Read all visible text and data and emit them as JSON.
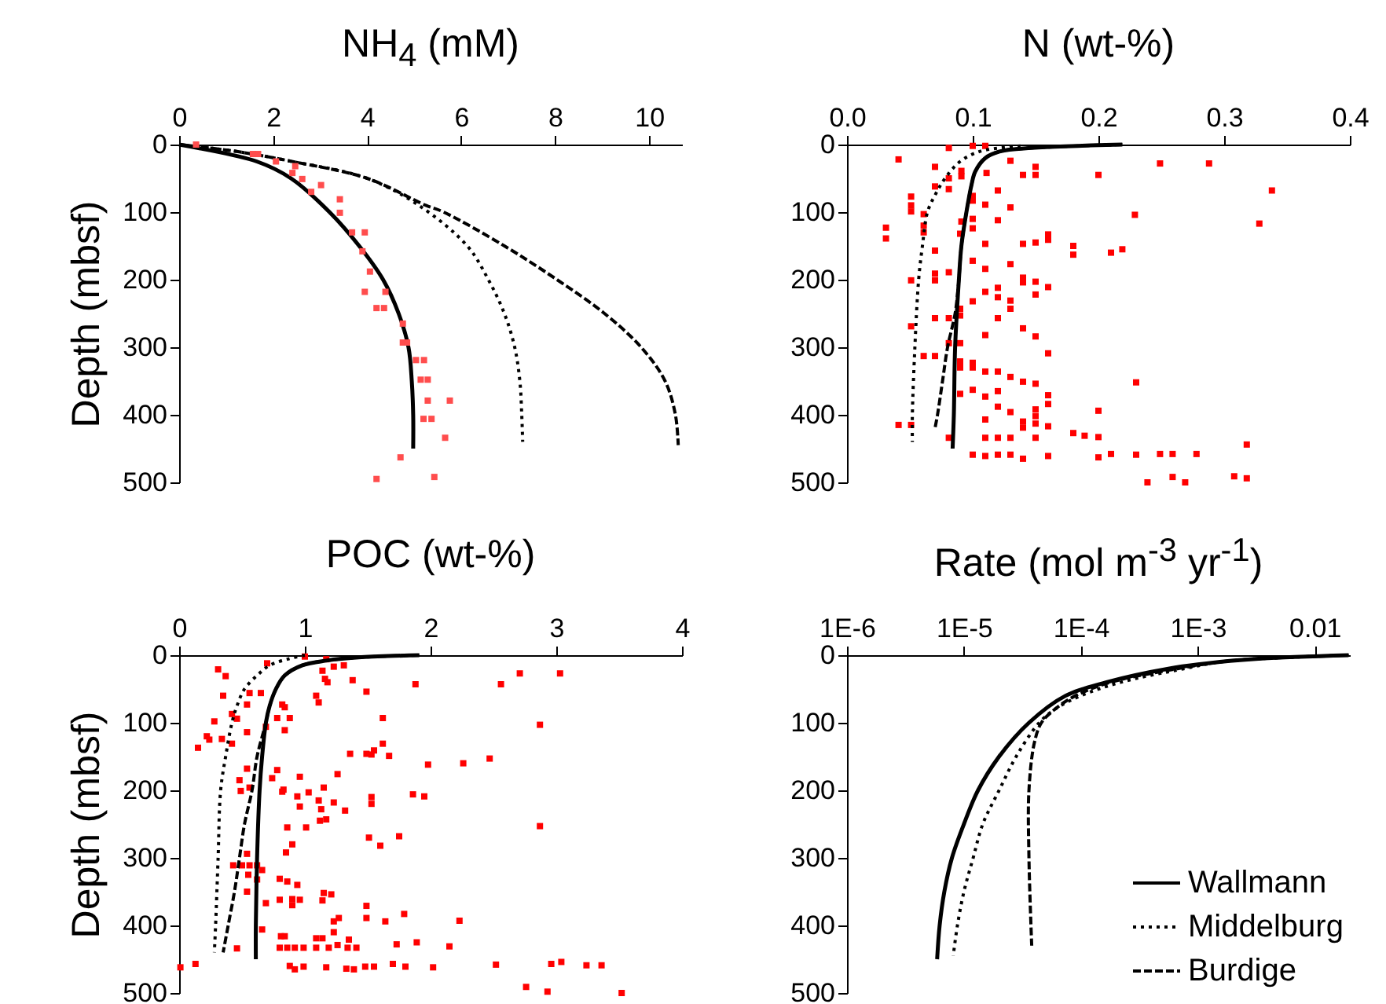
{
  "chart_data": [
    {
      "type": "line",
      "title": "NH$_{4}$ (mM)",
      "ylabel": "Depth (mbsf)",
      "xlim": [
        0,
        10.7
      ],
      "xticks": [
        0,
        2,
        4,
        6,
        8,
        10
      ],
      "ylim": [
        500,
        0
      ],
      "yticks": [
        0,
        100,
        200,
        300,
        400,
        500
      ],
      "grid": false,
      "legend": false,
      "series": [
        {
          "line_style": "solid",
          "color": "#000000",
          "x": [
            0,
            1.65,
            2.38,
            3.2,
            3.83,
            4.34,
            4.67,
            4.88,
            4.95,
            4.98,
            4.98
          ],
          "values": [
            0,
            25,
            50,
            100,
            150,
            200,
            250,
            300,
            350,
            400,
            450
          ]
        },
        {
          "line_style": "dotted",
          "color": "#000000",
          "x": [
            0,
            1.2,
            2.4,
            4.0,
            5.1,
            6.13,
            6.58,
            6.92,
            7.14,
            7.25,
            7.29,
            7.31
          ],
          "values": [
            0,
            10,
            25,
            50,
            90,
            150,
            200,
            250,
            300,
            350,
            400,
            440
          ]
        },
        {
          "line_style": "dashed",
          "color": "#000000",
          "x": [
            0,
            1.2,
            2.4,
            4.0,
            5.25,
            5.63,
            6.92,
            8.04,
            9.05,
            9.83,
            10.34,
            10.56,
            10.62
          ],
          "values": [
            0,
            10,
            25,
            50,
            90,
            100,
            150,
            200,
            250,
            300,
            350,
            400,
            445
          ]
        },
        {
          "type": "scatter",
          "marker": "square",
          "color": "#ff4d4d",
          "x": [
            0.36,
            1.57,
            1.68,
            2.06,
            2.47,
            2.41,
            2.62,
            3.02,
            2.81,
            3.42,
            3.42,
            3.68,
            3.95,
            3.9,
            4.06,
            3.95,
            4.39,
            4.2,
            4.36,
            4.76,
            4.76,
            4.85,
            5.04,
            5.21,
            5.14,
            5.29,
            5.29,
            5.76,
            5.2,
            5.37,
            5.66,
            4.71,
            4.2,
            5.43
          ],
          "values": [
            0,
            14,
            14,
            25,
            32,
            42,
            51,
            60,
            70,
            81,
            101,
            130,
            130,
            158,
            188,
            218,
            218,
            242,
            242,
            265,
            293,
            293,
            319,
            319,
            348,
            348,
            379,
            379,
            406,
            406,
            434,
            463,
            495,
            492
          ]
        }
      ]
    },
    {
      "type": "line",
      "title": "N (wt-%)",
      "xlim": [
        0,
        0.4
      ],
      "xticks": [
        {
          "value": 0,
          "label": "0.0"
        },
        0.1,
        0.2,
        0.3,
        0.4
      ],
      "ylim": [
        500,
        0
      ],
      "yticks": [
        0,
        100,
        200,
        300,
        400,
        500
      ],
      "grid": false,
      "legend": false,
      "series": [
        {
          "type": "scatter",
          "marker": "square",
          "color": "#ff0000",
          "x": [
            0.041,
            0.081,
            0.11,
            0.1,
            0.07,
            0.091,
            0.091,
            0.081,
            0.081,
            0.07,
            0.051,
            0.051,
            0.051,
            0.061,
            0.061,
            0.061,
            0.031,
            0.031,
            0.111,
            0.13,
            0.14,
            0.15,
            0.15,
            0.2,
            0.249,
            0.288,
            0.338,
            0.328,
            0.229,
            0.1,
            0.1,
            0.11,
            0.12,
            0.13,
            0.091,
            0.1,
            0.12,
            0.1,
            0.09,
            0.11,
            0.14,
            0.15,
            0.16,
            0.16,
            0.18,
            0.18,
            0.21,
            0.219,
            0.07,
            0.07,
            0.081,
            0.051,
            0.07,
            0.1,
            0.11,
            0.13,
            0.12,
            0.11,
            0.12,
            0.14,
            0.14,
            0.15,
            0.15,
            0.16,
            0.1,
            0.13,
            0.13,
            0.12,
            0.09,
            0.09,
            0.081,
            0.07,
            0.051,
            0.14,
            0.15,
            0.11,
            0.081,
            0.09,
            0.16,
            0.061,
            0.07,
            0.09,
            0.09,
            0.1,
            0.1,
            0.11,
            0.12,
            0.13,
            0.23,
            0.14,
            0.15,
            0.1,
            0.11,
            0.12,
            0.09,
            0.16,
            0.16,
            0.12,
            0.13,
            0.15,
            0.15,
            0.2,
            0.051,
            0.041,
            0.14,
            0.14,
            0.11,
            0.16,
            0.15,
            0.18,
            0.189,
            0.2,
            0.081,
            0.11,
            0.12,
            0.13,
            0.15,
            0.318,
            0.1,
            0.11,
            0.12,
            0.13,
            0.14,
            0.16,
            0.2,
            0.21,
            0.23,
            0.249,
            0.259,
            0.278,
            0.239,
            0.259,
            0.269,
            0.308,
            0.318
          ],
          "values": [
            22,
            5,
            2,
            2,
            33,
            39,
            47,
            50,
            66,
            62,
            77,
            90,
            99,
            103,
            120,
            130,
            123,
            139,
            42,
            24,
            45,
            33,
            45,
            45,
            28,
            28,
            68,
            117,
            104,
            76,
            83,
            89,
            68,
            93,
            114,
            110,
            112,
            124,
            132,
            147,
            147,
            145,
            133,
            141,
            150,
            163,
            160,
            155,
            157,
            191,
            189,
            201,
            201,
            172,
            184,
            177,
            212,
            218,
            226,
            197,
            204,
            203,
            222,
            211,
            232,
            231,
            243,
            257,
            243,
            253,
            257,
            257,
            269,
            272,
            284,
            282,
            294,
            294,
            309,
            313,
            313,
            321,
            330,
            323,
            330,
            336,
            336,
            344,
            352,
            351,
            354,
            363,
            373,
            365,
            369,
            371,
            384,
            388,
            396,
            392,
            402,
            394,
            415,
            415,
            410,
            419,
            407,
            417,
            413,
            427,
            431,
            433,
            434,
            434,
            434,
            434,
            434,
            444,
            459,
            461,
            459,
            459,
            465,
            461,
            463,
            458,
            459,
            458,
            458,
            458,
            500,
            492,
            500,
            491,
            494
          ]
        },
        {
          "line_style": "solid",
          "color": "#000000",
          "x": [
            0.219,
            0.147,
            0.122,
            0.11,
            0.102,
            0.099,
            0.095,
            0.091,
            0.089,
            0.086,
            0.085,
            0.084
          ],
          "values": [
            0,
            5,
            10,
            20,
            40,
            60,
            100,
            150,
            200,
            300,
            400,
            450
          ]
        },
        {
          "line_style": "dotted",
          "color": "#000000",
          "x": [
            0.138,
            0.106,
            0.09,
            0.078,
            0.07,
            0.064,
            0.06,
            0.057,
            0.054,
            0.052,
            0.052
          ],
          "values": [
            2,
            10,
            25,
            50,
            75,
            100,
            150,
            200,
            300,
            400,
            440
          ]
        },
        {
          "line_style": "dashed",
          "color": "#000000",
          "x": [
            0.219,
            0.147,
            0.122,
            0.11,
            0.102,
            0.099,
            0.095,
            0.091,
            0.089,
            0.086,
            0.08,
            0.076,
            0.072,
            0.07
          ],
          "values": [
            0,
            5,
            10,
            20,
            40,
            60,
            100,
            150,
            200,
            250,
            300,
            350,
            400,
            420
          ]
        }
      ]
    },
    {
      "type": "line",
      "title": "POC (wt-%)",
      "ylabel": "Depth (mbsf)",
      "xlim": [
        0,
        4
      ],
      "xticks": [
        0,
        1,
        2,
        3,
        4
      ],
      "ylim": [
        500,
        0
      ],
      "yticks": [
        0,
        100,
        200,
        300,
        400,
        500
      ],
      "grid": false,
      "legend": false,
      "series": [
        {
          "type": "scatter",
          "marker": "square",
          "color": "#ff0000",
          "x": [
            0.31,
            0.37,
            0.7,
            1.0,
            1.17,
            1.23,
            1.31,
            1.14,
            1.16,
            1.18,
            1.38,
            1.49,
            1.88,
            2.56,
            2.71,
            3.03,
            0.35,
            0.56,
            0.65,
            0.54,
            0.42,
            0.46,
            0.28,
            0.22,
            0.24,
            0.15,
            0.34,
            0.42,
            0.54,
            0.82,
            0.84,
            0.78,
            0.88,
            0.84,
            0.69,
            1.09,
            1.11,
            1.62,
            1.62,
            1.67,
            1.49,
            1.53,
            1.55,
            1.36,
            2.87,
            1.98,
            2.26,
            2.47,
            0.54,
            0.48,
            0.56,
            0.49,
            0.78,
            0.74,
            0.83,
            0.82,
            0.96,
            1.03,
            0.94,
            0.96,
            1.26,
            1.15,
            1.11,
            1.13,
            1.17,
            1.12,
            1.23,
            1.32,
            1.53,
            1.53,
            1.86,
            1.95,
            1.51,
            1.6,
            1.75,
            2.87,
            0.86,
            1.01,
            0.9,
            0.85,
            0.43,
            0.5,
            0.56,
            0.62,
            0.66,
            0.62,
            0.54,
            0.55,
            0.54,
            0.8,
            0.86,
            0.94,
            0.8,
            0.9,
            0.96,
            0.9,
            0.69,
            1.15,
            1.21,
            1.14,
            0.66,
            0.81,
            0.84,
            0.8,
            0.86,
            0.92,
            0.99,
            1.09,
            1.14,
            1.09,
            1.19,
            1.26,
            1.34,
            1.35,
            1.41,
            1.23,
            1.27,
            1.23,
            1.49,
            1.49,
            1.64,
            1.79,
            1.73,
            1.89,
            2.15,
            2.23,
            0.46,
            0.01,
            0.13,
            0.88,
            0.92,
            0.99,
            1.17,
            1.33,
            1.39,
            1.48,
            1.55,
            1.7,
            1.8,
            2.02,
            2.52,
            2.96,
            3.04,
            3.24,
            3.36,
            2.76,
            2.93,
            3.52
          ],
          "values": [
            21,
            31,
            12,
            2,
            6,
            17,
            15,
            23,
            35,
            40,
            37,
            54,
            43,
            43,
            27,
            27,
            60,
            56,
            56,
            73,
            87,
            94,
            98,
            120,
            125,
            137,
            124,
            131,
            114,
            73,
            77,
            93,
            93,
            111,
            106,
            60,
            70,
            93,
            131,
            149,
            146,
            147,
            141,
            146,
            103,
            162,
            160,
            153,
            168,
            185,
            196,
            201,
            170,
            182,
            199,
            202,
            180,
            203,
            209,
            224,
            176,
            196,
            215,
            228,
            243,
            245,
            218,
            230,
            210,
            220,
            206,
            209,
            270,
            282,
            268,
            253,
            255,
            255,
            280,
            292,
            311,
            311,
            311,
            311,
            318,
            332,
            350,
            325,
            294,
            331,
            335,
            340,
            362,
            361,
            362,
            370,
            367,
            352,
            354,
            363,
            406,
            416,
            416,
            433,
            433,
            433,
            433,
            419,
            419,
            433,
            433,
            429,
            433,
            421,
            433,
            394,
            389,
            410,
            389,
            371,
            394,
            383,
            428,
            425,
            431,
            393,
            434,
            462,
            457,
            460,
            465,
            461,
            462,
            464,
            465,
            461,
            461,
            457,
            461,
            462,
            458,
            457,
            454,
            459,
            459,
            491,
            498,
            500
          ]
        },
        {
          "line_style": "solid",
          "color": "#000000",
          "x": [
            1.91,
            1.45,
            1.17,
            0.98,
            0.84,
            0.77,
            0.72,
            0.69,
            0.66,
            0.64,
            0.62,
            0.61,
            0.61
          ],
          "values": [
            0,
            3,
            8,
            15,
            30,
            50,
            75,
            100,
            150,
            200,
            300,
            400,
            450
          ]
        },
        {
          "line_style": "dotted",
          "color": "#000000",
          "x": [
            1.0,
            0.88,
            0.72,
            0.62,
            0.52,
            0.46,
            0.42,
            0.37,
            0.33,
            0.31,
            0.29,
            0.28
          ],
          "values": [
            0,
            5,
            15,
            30,
            50,
            75,
            100,
            150,
            200,
            300,
            400,
            440
          ]
        },
        {
          "line_style": "dashed",
          "color": "#000000",
          "x": [
            1.91,
            1.45,
            1.17,
            0.98,
            0.84,
            0.77,
            0.72,
            0.69,
            0.62,
            0.58,
            0.52,
            0.48,
            0.44,
            0.39,
            0.35
          ],
          "values": [
            0,
            3,
            8,
            15,
            30,
            50,
            75,
            100,
            150,
            200,
            250,
            300,
            350,
            400,
            440
          ]
        }
      ]
    },
    {
      "type": "line",
      "title": "Rate (mol m$^{-3}$ yr$^{-1}$)",
      "log": "x",
      "xlim": [
        1e-06,
        0.02
      ],
      "xticks": [
        {
          "value": 1e-06,
          "label": "1E-6"
        },
        {
          "value": 1e-05,
          "label": "1E-5"
        },
        {
          "value": 0.0001,
          "label": "1E-4"
        },
        {
          "value": 0.001,
          "label": "1E-3"
        },
        0.01
      ],
      "ylim": [
        500,
        0
      ],
      "yticks": [
        0,
        100,
        200,
        300,
        400,
        500
      ],
      "grid": false,
      "legend": "bottom right",
      "series": [
        {
          "name": "Wallmann",
          "line_style": "solid",
          "color": "#000000",
          "x": [
            0.0195,
            0.0035,
            0.00155,
            0.00056,
            0.000166,
            7.4e-05,
            3.6e-05,
            2e-05,
            1.32e-05,
            1e-05,
            7.9e-06,
            6.8e-06,
            6.2e-06,
            5.9e-06
          ],
          "values": [
            0,
            5,
            10,
            20,
            40,
            60,
            100,
            150,
            200,
            250,
            300,
            350,
            400,
            450
          ]
        },
        {
          "name": "Middelburg",
          "line_style": "dotted",
          "color": "#000000",
          "x": [
            0.0195,
            0.0035,
            0.00155,
            0.00076,
            0.00022,
            0.0001,
            6e-05,
            4.4e-05,
            2.8e-05,
            2e-05,
            1.45e-05,
            1.2e-05,
            1e-05,
            8.8e-06,
            8.1e-06
          ],
          "values": [
            0,
            5,
            10,
            20,
            40,
            60,
            80,
            100,
            150,
            200,
            250,
            300,
            350,
            400,
            445
          ]
        },
        {
          "name": "Burdige",
          "line_style": "dashed",
          "color": "#000000",
          "x": [
            0.0195,
            0.0035,
            0.00155,
            0.00067,
            0.00018,
            9e-05,
            6e-05,
            4.6e-05,
            4e-05,
            3.6e-05,
            3.6e-05,
            3.8e-05
          ],
          "values": [
            0,
            5,
            10,
            20,
            40,
            60,
            80,
            100,
            130,
            200,
            300,
            430
          ]
        }
      ]
    }
  ]
}
